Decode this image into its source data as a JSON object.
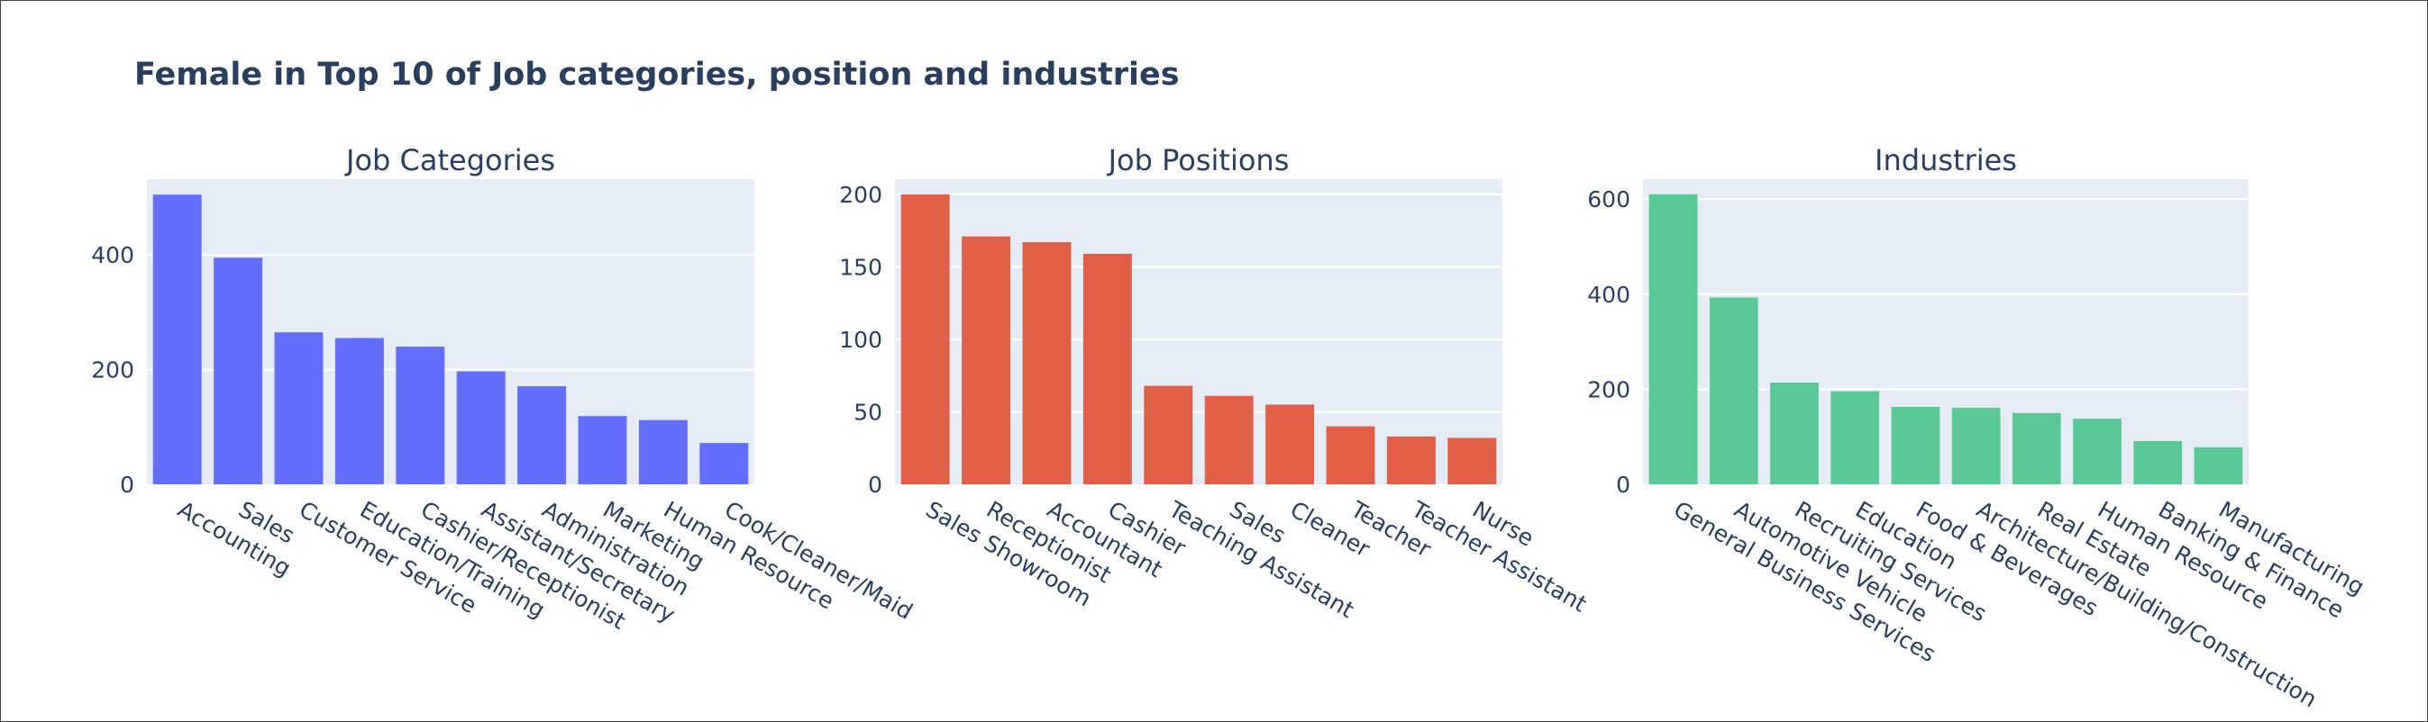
{
  "title": "Female in Top 10 of Job categories, position and industries",
  "chart_data": [
    {
      "type": "bar",
      "title": "Job Categories",
      "color": "#636efa",
      "categories": [
        "Accounting",
        "Sales",
        "Customer Service",
        "Education/Training",
        "Cashier/Receptionist",
        "Assistant/Secretary",
        "Administration",
        "Marketing",
        "Human Resource",
        "Cook/Cleaner/Maid"
      ],
      "values": [
        505,
        395,
        265,
        255,
        240,
        197,
        171,
        119,
        112,
        72
      ],
      "yticks": [
        0,
        200,
        400
      ],
      "ylim": [
        0,
        532
      ],
      "grid": true
    },
    {
      "type": "bar",
      "title": "Job Positions",
      "color": "#e05f46",
      "categories": [
        "Sales Showroom",
        "Receptionist",
        "Accountant",
        "Cashier",
        "Teaching Assistant",
        "Sales",
        "Cleaner",
        "Teacher",
        "Teacher Assistant",
        "Nurse"
      ],
      "values": [
        200,
        171,
        167,
        159,
        68,
        61,
        55,
        40,
        33,
        32
      ],
      "yticks": [
        0,
        50,
        100,
        150,
        200
      ],
      "ylim": [
        0,
        210.5
      ],
      "grid": true
    },
    {
      "type": "bar",
      "title": "Industries",
      "color": "#5bc996",
      "categories": [
        "General Business Services",
        "Automotive  Vehicle",
        "Recruiting Services",
        "Education",
        "Food & Beverages",
        "Architecture/Building/Construction",
        "Real Estate",
        "Human Resource",
        "Banking & Finance",
        "Manufacturing"
      ],
      "values": [
        610,
        393,
        214,
        196,
        163,
        161,
        150,
        138,
        91,
        78
      ],
      "yticks": [
        0,
        200,
        400,
        600
      ],
      "ylim": [
        0,
        642
      ],
      "grid": true
    }
  ]
}
